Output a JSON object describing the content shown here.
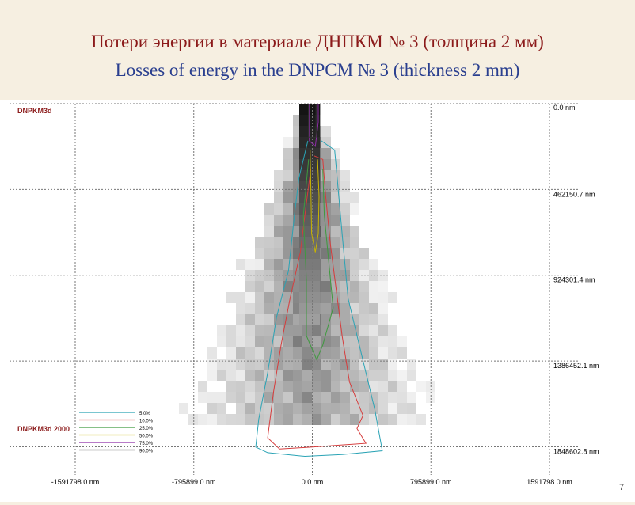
{
  "slide": {
    "title_ru": "Потери энергии в материале ДНПКМ № 3 (толщина 2 мм)",
    "title_en": "Losses of energy in the DNPCM № 3 (thickness 2 mm)",
    "page_number": "7"
  },
  "chart_data": {
    "type": "heatmap",
    "title": "DNPKM3d",
    "legend_title": "DNPKM3d 2000",
    "legend_placement": "bottom-left",
    "grid": true,
    "x_ticks": [
      "-1591798.0 nm",
      "-795899.0 nm",
      "0.0 nm",
      "795899.0 nm",
      "1591798.0 nm"
    ],
    "y_ticks": [
      "0.0 nm",
      "462150.7 nm",
      "924301.4 nm",
      "1386452.1 nm",
      "1848602.8 nm"
    ],
    "x_tick_values": [
      -1591798.0,
      -795899.0,
      0.0,
      795899.0,
      1591798.0
    ],
    "y_tick_values": [
      0.0,
      462150.7,
      924301.4,
      1386452.1,
      1848602.8
    ],
    "xlim": [
      -1591798.0,
      1591798.0
    ],
    "ylim": [
      0.0,
      2000000.0
    ],
    "colors": {
      "background": "#ffffff",
      "grid": "#777777",
      "label": "#8b1a1a",
      "tick_text": "#000000"
    },
    "series": [
      {
        "name": "5.0%",
        "color": "#2aa3b5",
        "points": [
          [
            -30000,
            200000
          ],
          [
            -90000,
            400000
          ],
          [
            -120000,
            600000
          ],
          [
            -160000,
            900000
          ],
          [
            -240000,
            1150000
          ],
          [
            -300000,
            1450000
          ],
          [
            -360000,
            1700000
          ],
          [
            -380000,
            1850000
          ],
          [
            -300000,
            1880000
          ],
          [
            -50000,
            1900000
          ],
          [
            200000,
            1890000
          ],
          [
            470000,
            1870000
          ],
          [
            420000,
            1650000
          ],
          [
            330000,
            1350000
          ],
          [
            240000,
            1050000
          ],
          [
            200000,
            700000
          ],
          [
            170000,
            430000
          ],
          [
            150000,
            250000
          ],
          [
            60000,
            200000
          ]
        ]
      },
      {
        "name": "10.0%",
        "color": "#d63c3c",
        "points": [
          [
            -10000,
            350000
          ],
          [
            -50000,
            600000
          ],
          [
            -80000,
            800000
          ],
          [
            -150000,
            1050000
          ],
          [
            -210000,
            1300000
          ],
          [
            -260000,
            1550000
          ],
          [
            -300000,
            1800000
          ],
          [
            -220000,
            1860000
          ],
          [
            0,
            1850000
          ],
          [
            170000,
            1840000
          ],
          [
            360000,
            1830000
          ],
          [
            300000,
            1750000
          ],
          [
            340000,
            1680000
          ],
          [
            250000,
            1500000
          ],
          [
            200000,
            1250000
          ],
          [
            160000,
            1000000
          ],
          [
            120000,
            750000
          ],
          [
            90000,
            500000
          ],
          [
            70000,
            300000
          ],
          [
            10000,
            280000
          ]
        ]
      },
      {
        "name": "25.0%",
        "color": "#3e9a3e",
        "points": [
          [
            -25000,
            300000
          ],
          [
            -60000,
            600000
          ],
          [
            -40000,
            950000
          ],
          [
            -40000,
            1250000
          ],
          [
            30000,
            1380000
          ],
          [
            70000,
            1300000
          ],
          [
            140000,
            1100000
          ],
          [
            110000,
            850000
          ],
          [
            80000,
            600000
          ],
          [
            70000,
            350000
          ]
        ]
      },
      {
        "name": "50.0%",
        "color": "#c9b400",
        "points": [
          [
            -15000,
            250000
          ],
          [
            -10000,
            450000
          ],
          [
            -5000,
            700000
          ],
          [
            20000,
            800000
          ],
          [
            40000,
            700000
          ],
          [
            45000,
            500000
          ],
          [
            35000,
            300000
          ]
        ]
      },
      {
        "name": "75.0%",
        "color": "#8e2ca8",
        "points": [
          [
            -20000,
            0
          ],
          [
            -20000,
            200000
          ],
          [
            20000,
            230000
          ],
          [
            40000,
            100000
          ],
          [
            40000,
            0
          ]
        ]
      },
      {
        "name": "90.0%",
        "color": "#333333",
        "points": [
          [
            -25000,
            0
          ],
          [
            -25000,
            180000
          ],
          [
            25000,
            180000
          ],
          [
            25000,
            0
          ]
        ]
      }
    ]
  }
}
